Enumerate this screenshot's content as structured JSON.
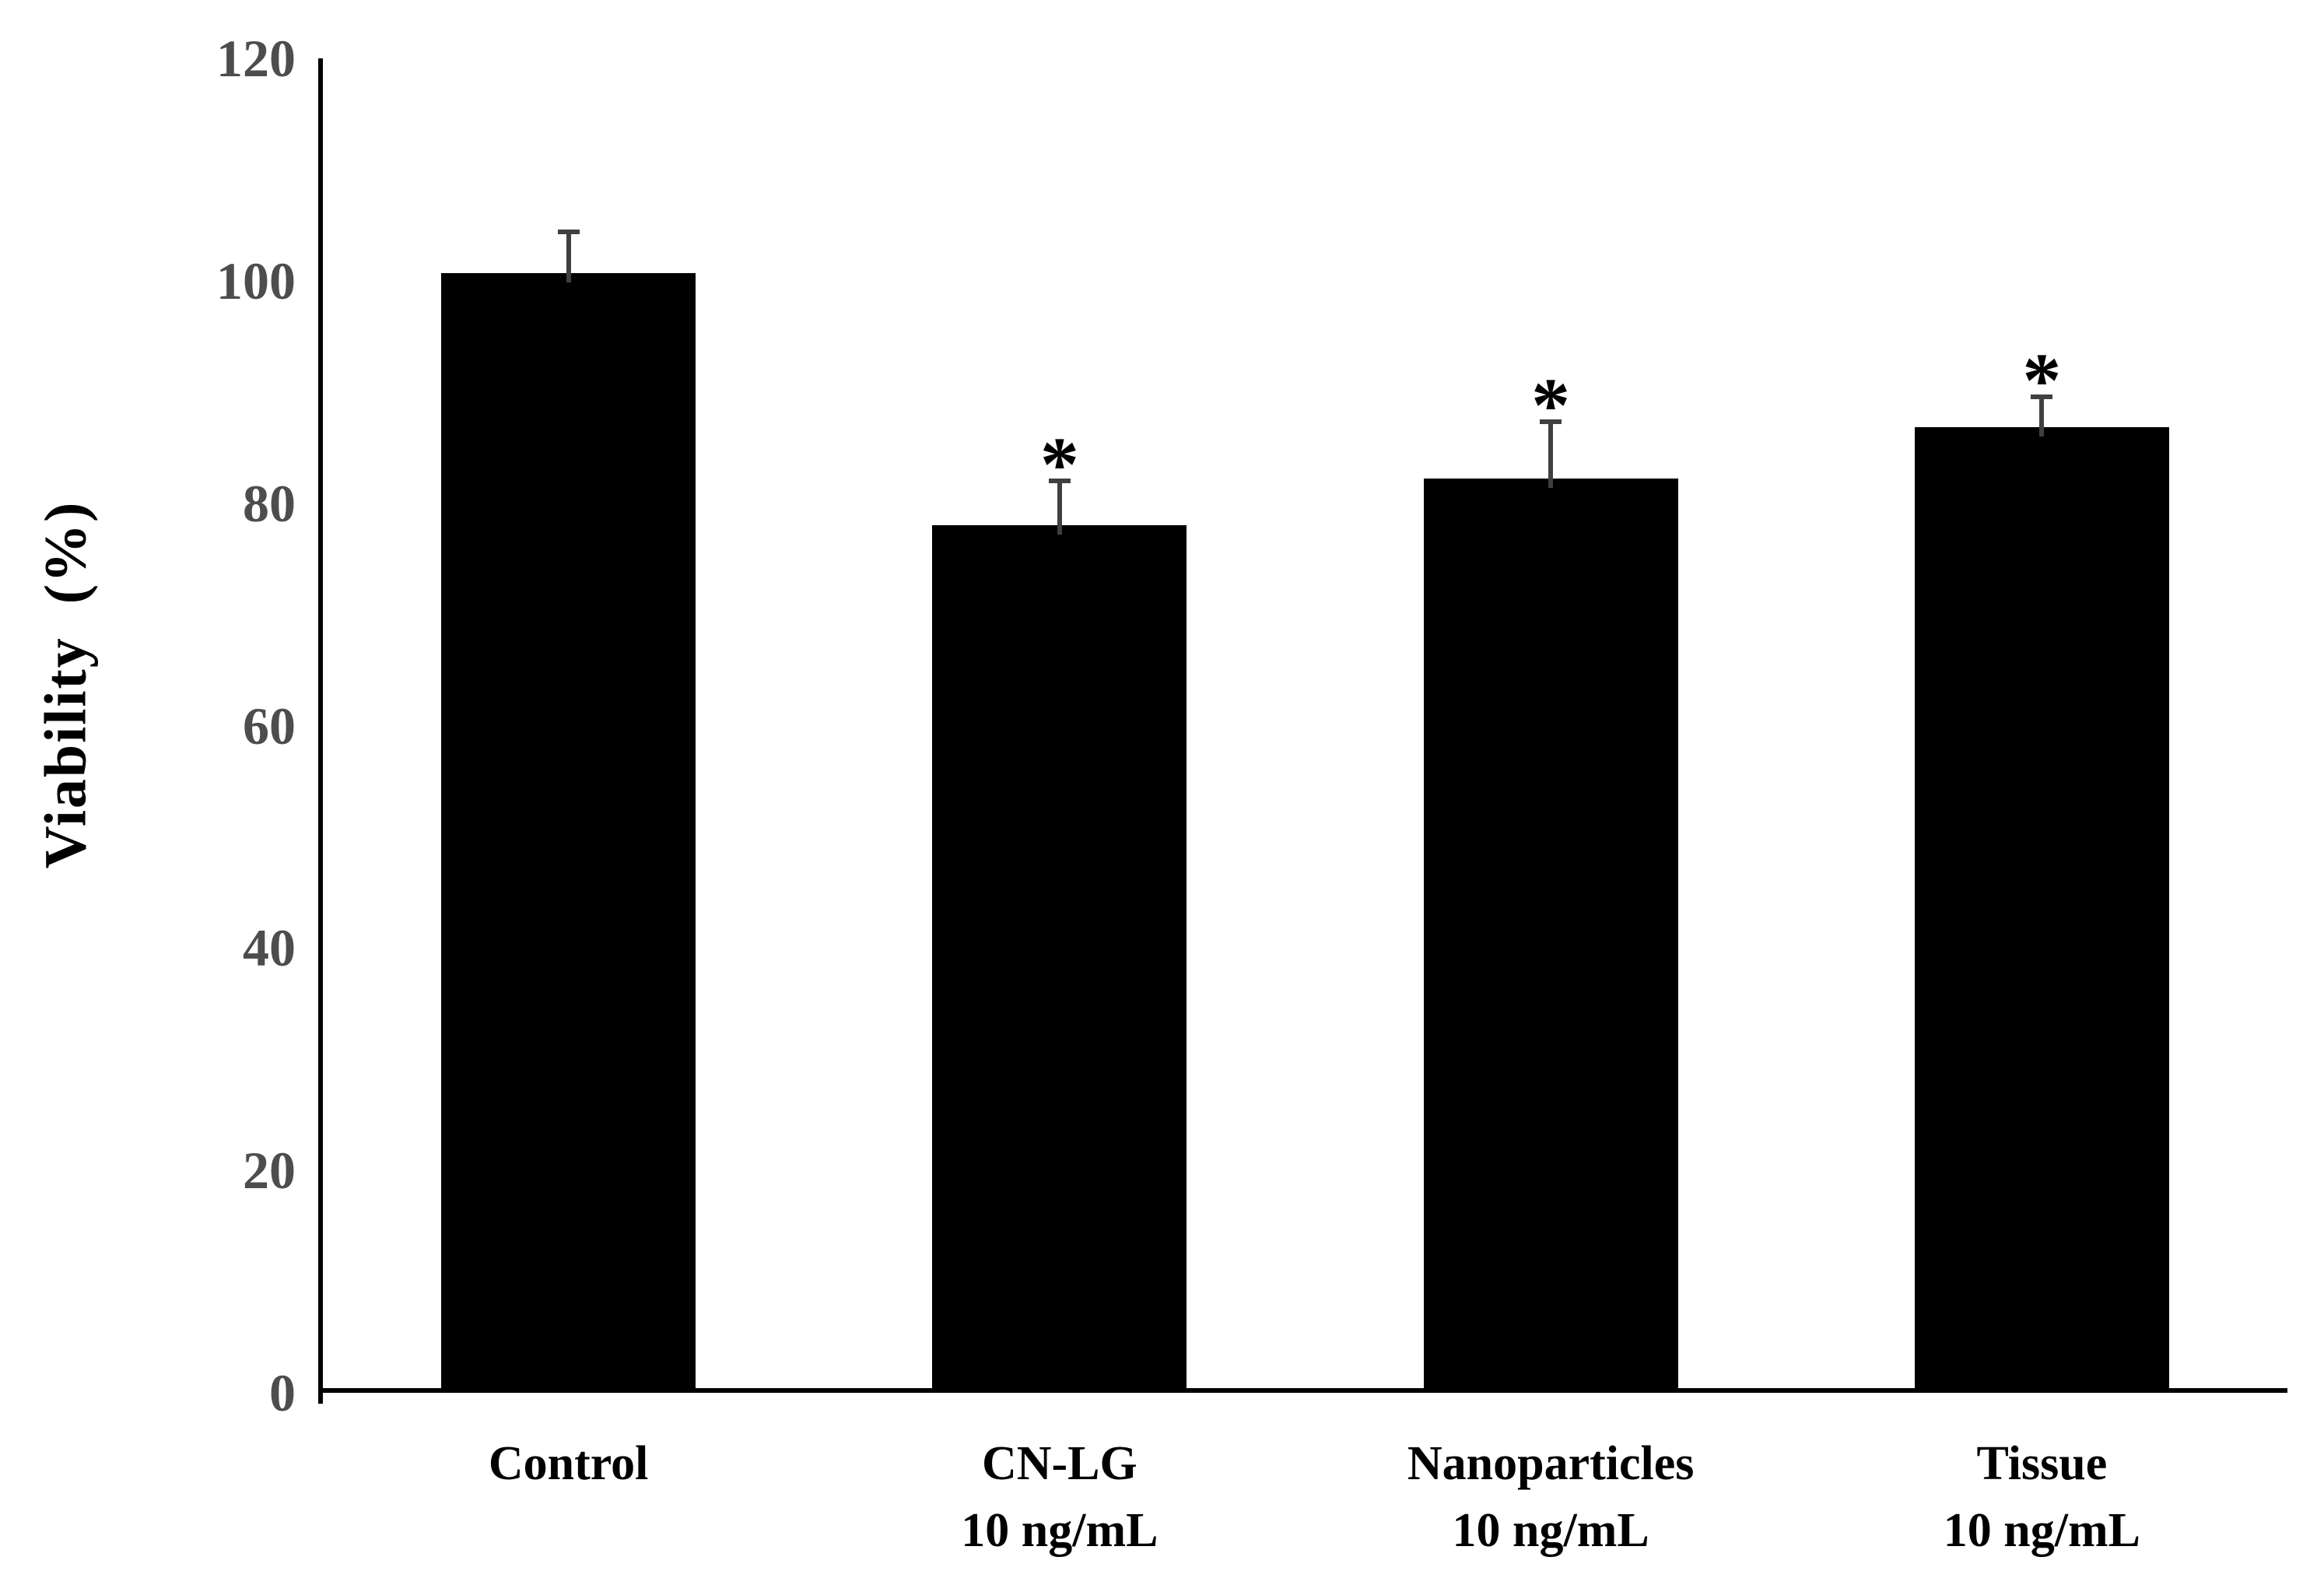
{
  "chart_data": {
    "type": "bar",
    "title": "",
    "ylabel": "Viability  (%)",
    "xlabel": "",
    "ylim": [
      0,
      120
    ],
    "yticks": [
      0,
      20,
      40,
      60,
      80,
      100,
      120
    ],
    "grid": false,
    "legend": "none",
    "categories": [
      {
        "lines": [
          "Control"
        ]
      },
      {
        "lines": [
          "CN-LG",
          "10 ng/mL"
        ]
      },
      {
        "lines": [
          "Nanoparticles",
          "10 ng/mL"
        ]
      },
      {
        "lines": [
          "Tissue",
          "10 ng/mL"
        ]
      }
    ],
    "series": [
      {
        "name": "Viability",
        "values": [
          100.7,
          78,
          82.2,
          86.8
        ],
        "errors_plus": [
          3.9,
          4.2,
          5.3,
          3
        ],
        "significance": [
          "",
          "*",
          "*",
          "*"
        ]
      }
    ],
    "colors": {
      "bar_fill": "#000000",
      "axis": "#000000",
      "y_tick_labels": "#4d4d4d",
      "category_labels": "#000000",
      "error_bars": "#404040",
      "background": "#ffffff"
    }
  }
}
